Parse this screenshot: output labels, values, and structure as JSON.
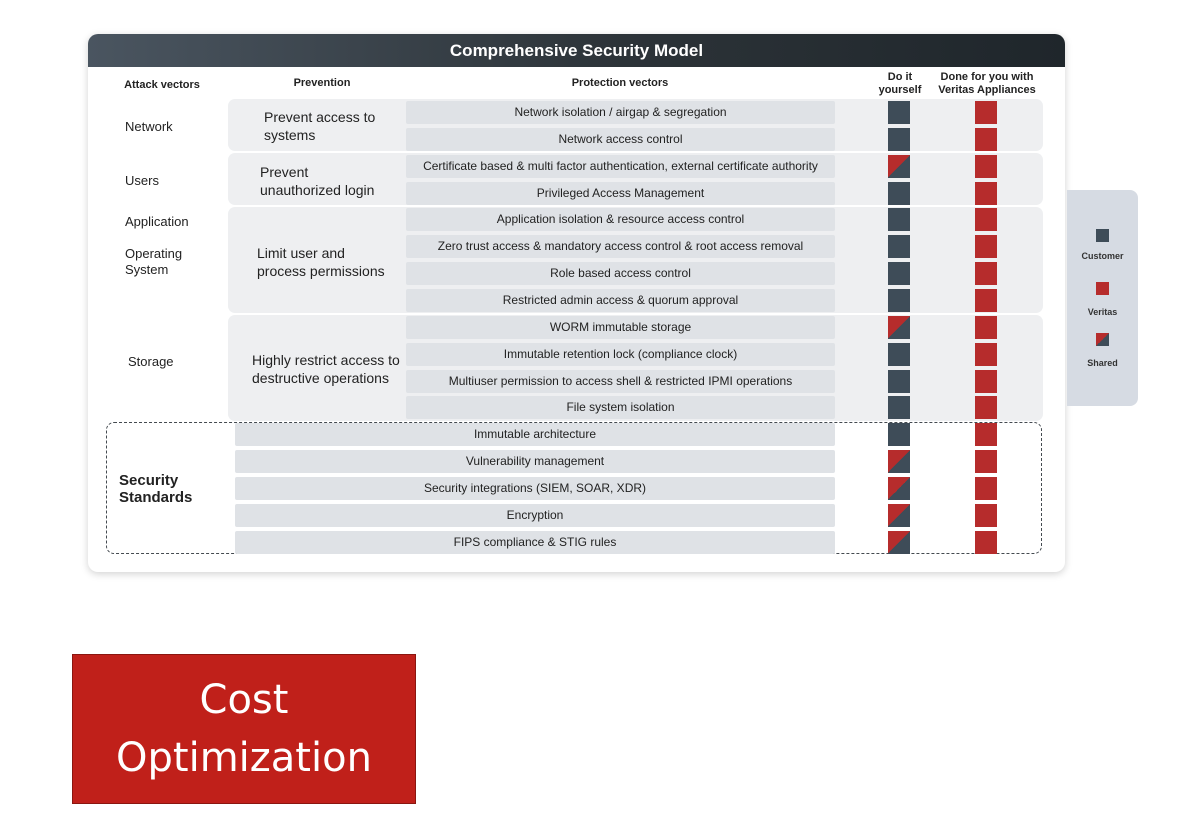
{
  "diagram": {
    "title": "Comprehensive Security Model",
    "headers": {
      "attack_vectors": "Attack vectors",
      "prevention": "Prevention",
      "protection_vectors": "Protection vectors",
      "diy_line1": "Do it",
      "diy_line2": "yourself",
      "veritas_line1": "Done for you with",
      "veritas_line2": "Veritas Appliances"
    },
    "attack_vectors": {
      "network": "Network",
      "users": "Users",
      "application": "Application",
      "os_line1": "Operating",
      "os_line2": "System",
      "storage": "Storage",
      "security_line1": "Security",
      "security_line2": "Standards"
    },
    "prevention": {
      "p1_line1": "Prevent access to",
      "p1_line2": "systems",
      "p2_line1": "Prevent",
      "p2_line2": "unauthorized login",
      "p3_line1": "Limit user and",
      "p3_line2": "process permissions",
      "p4_line1": "Highly restrict access to",
      "p4_line2": "destructive operations"
    },
    "rows": [
      {
        "label": "Network isolation / airgap & segregation",
        "diy": "customer",
        "veritas": "veritas"
      },
      {
        "label": "Network access control",
        "diy": "customer",
        "veritas": "veritas"
      },
      {
        "label": "Certificate based & multi factor authentication, external certificate authority",
        "diy": "shared",
        "veritas": "veritas"
      },
      {
        "label": "Privileged Access Management",
        "diy": "customer",
        "veritas": "veritas"
      },
      {
        "label": "Application isolation & resource access control",
        "diy": "customer",
        "veritas": "veritas"
      },
      {
        "label": "Zero trust access & mandatory access control & root access removal",
        "diy": "customer",
        "veritas": "veritas"
      },
      {
        "label": "Role based access control",
        "diy": "customer",
        "veritas": "veritas"
      },
      {
        "label": "Restricted admin access & quorum approval",
        "diy": "customer",
        "veritas": "veritas"
      },
      {
        "label": "WORM immutable storage",
        "diy": "shared",
        "veritas": "veritas"
      },
      {
        "label": "Immutable retention lock (compliance clock)",
        "diy": "customer",
        "veritas": "veritas"
      },
      {
        "label": "Multiuser permission to access shell & restricted IPMI operations",
        "diy": "customer",
        "veritas": "veritas"
      },
      {
        "label": "File system isolation",
        "diy": "customer",
        "veritas": "veritas"
      },
      {
        "label": "Immutable architecture",
        "diy": "customer",
        "veritas": "veritas"
      },
      {
        "label": "Vulnerability management",
        "diy": "shared",
        "veritas": "veritas"
      },
      {
        "label": "Security integrations (SIEM, SOAR, XDR)",
        "diy": "shared",
        "veritas": "veritas"
      },
      {
        "label": "Encryption",
        "diy": "shared",
        "veritas": "veritas"
      },
      {
        "label": "FIPS compliance & STIG rules",
        "diy": "shared",
        "veritas": "veritas"
      }
    ],
    "legend": {
      "customer": "Customer",
      "veritas": "Veritas",
      "shared": "Shared"
    },
    "colors": {
      "customer": "#3e4c58",
      "veritas": "#b62c2c",
      "title_bar": "#2c3338"
    }
  },
  "cost_box": {
    "line1": "Cost",
    "line2": "Optimization",
    "color": "#c0201a"
  }
}
